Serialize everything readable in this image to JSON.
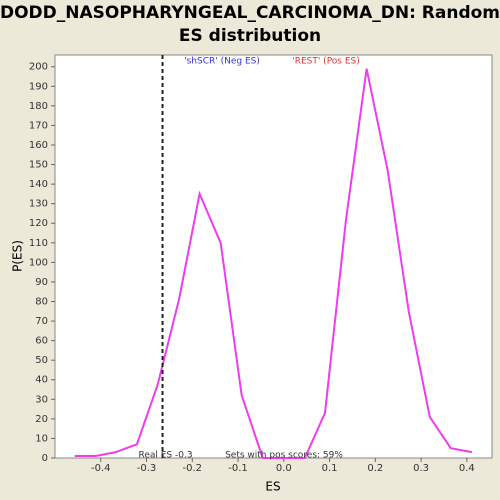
{
  "chart_data": {
    "type": "line",
    "title": [
      "DODD_NASOPHARYNGEAL_CARCINOMA_DN: Random",
      "ES distribution"
    ],
    "xlabel": "ES",
    "ylabel": "P(ES)",
    "x": [
      -0.457,
      -0.411,
      -0.367,
      -0.321,
      -0.275,
      -0.229,
      -0.184,
      -0.138,
      -0.092,
      -0.046,
      0.0,
      0.046,
      0.09,
      0.136,
      0.181,
      0.227,
      0.273,
      0.319,
      0.365,
      0.411
    ],
    "series": [
      {
        "color": "#ee3cee",
        "values": [
          1,
          1,
          3,
          7,
          38,
          81,
          135,
          110,
          32,
          0,
          0,
          0,
          23,
          122,
          199,
          147,
          75,
          21,
          5,
          3
        ]
      }
    ],
    "xlim": [
      -0.5,
      0.455
    ],
    "ylim": [
      0,
      206
    ],
    "xticks": [
      -0.4,
      -0.3,
      -0.2,
      -0.1,
      {
        "value": 0,
        "label": "0.0"
      },
      0.1,
      0.2,
      0.3,
      0.4
    ],
    "yticks": [
      0,
      10,
      20,
      30,
      40,
      50,
      60,
      70,
      80,
      90,
      100,
      110,
      120,
      130,
      140,
      150,
      160,
      170,
      180,
      190,
      200
    ],
    "grid": false,
    "real_es": {
      "value": -0.265,
      "label": "Real ES -0.3"
    },
    "annotations": [
      {
        "text": "'shSCR' (Neg ES)",
        "color": "#3333cc"
      },
      {
        "text": "'REST' (Pos ES)",
        "color": "#dd3333"
      },
      {
        "text": "Sets with pos scores: 59%",
        "color": "#333333"
      }
    ]
  }
}
